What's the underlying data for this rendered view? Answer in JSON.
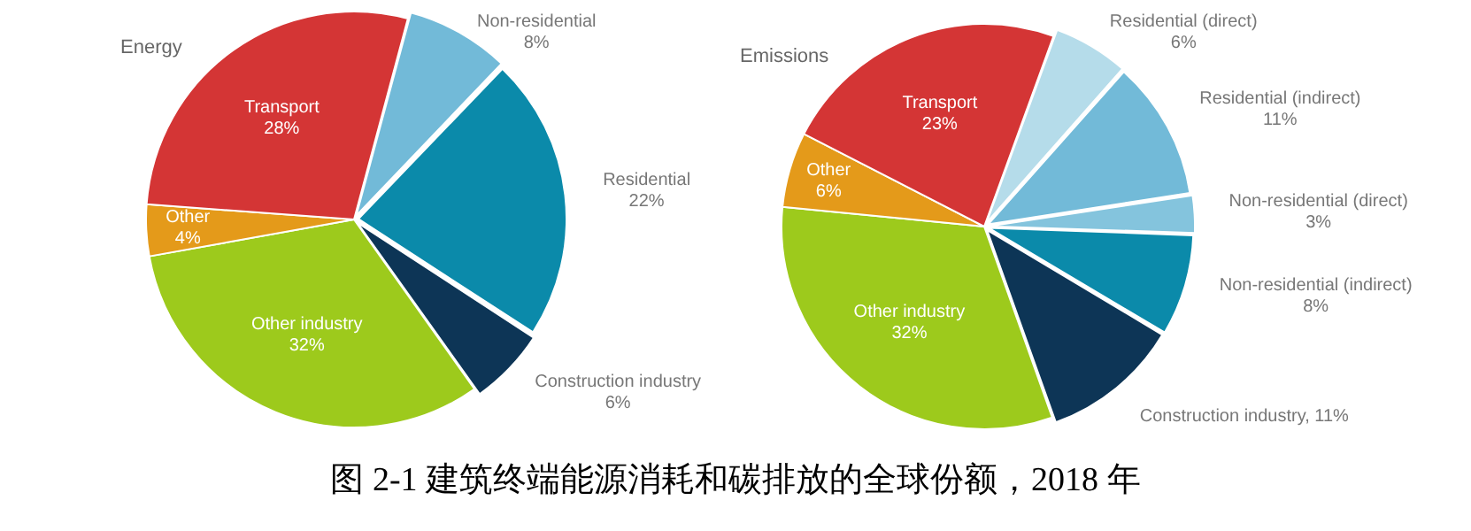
{
  "chart_data": [
    {
      "type": "pie",
      "title": "Energy",
      "categories": [
        "Non-residential",
        "Residential",
        "Construction industry",
        "Other industry",
        "Other",
        "Transport"
      ],
      "values": [
        8,
        22,
        6,
        32,
        4,
        28
      ],
      "colors": [
        "#72bad8",
        "#0b8aaa",
        "#0d3556",
        "#9dca1c",
        "#e49a1a",
        "#d43535"
      ],
      "value_labels": [
        "8%",
        "22%",
        "6%",
        "32%",
        "4%",
        "28%"
      ],
      "annotations": [
        "图 2-1 建筑终端能源消耗和碳排放的全球份额，2018 年"
      ]
    },
    {
      "type": "pie",
      "title": "Emissions",
      "categories": [
        "Residential (direct)",
        "Residential (indirect)",
        "Non-residential (direct)",
        "Non-residential (indirect)",
        "Construction industry",
        "Other industry",
        "Other",
        "Transport"
      ],
      "values": [
        6,
        11,
        3,
        8,
        11,
        32,
        6,
        23
      ],
      "colors": [
        "#b5dcea",
        "#72bad8",
        "#84c4dd",
        "#0b8aaa",
        "#0d3556",
        "#9dca1c",
        "#e49a1a",
        "#d43535"
      ],
      "value_labels": [
        "6%",
        "11%",
        "3%",
        "8%",
        "11%",
        "32%",
        "6%",
        "23%"
      ]
    }
  ]
}
